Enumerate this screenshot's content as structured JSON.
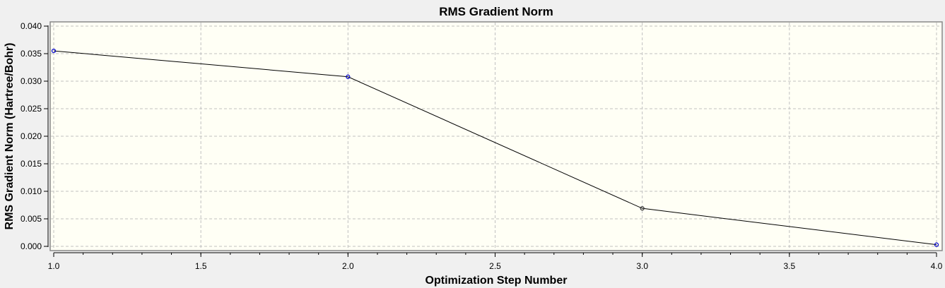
{
  "chart_data": {
    "type": "line",
    "title": "RMS Gradient Norm",
    "xlabel": "Optimization Step Number",
    "ylabel": "RMS Gradient Norm (Hartree/Bohr)",
    "x": [
      1,
      2,
      3,
      4
    ],
    "series": [
      {
        "name": "RMS Gradient Norm",
        "values": [
          0.0355,
          0.0308,
          0.0069,
          0.0003
        ]
      }
    ],
    "xlim": [
      1.0,
      4.0
    ],
    "ylim": [
      0.0,
      0.04
    ],
    "xticks": [
      "1.0",
      "1.5",
      "2.0",
      "2.5",
      "3.0",
      "3.5",
      "4.0"
    ],
    "yticks": [
      "0.000",
      "0.005",
      "0.010",
      "0.015",
      "0.020",
      "0.025",
      "0.030",
      "0.035",
      "0.040"
    ],
    "grid": true,
    "colors": {
      "plot_bg": "#fffff5",
      "line": "#000000",
      "marker": "#0000cc",
      "grid": "#c0c0c0"
    }
  }
}
